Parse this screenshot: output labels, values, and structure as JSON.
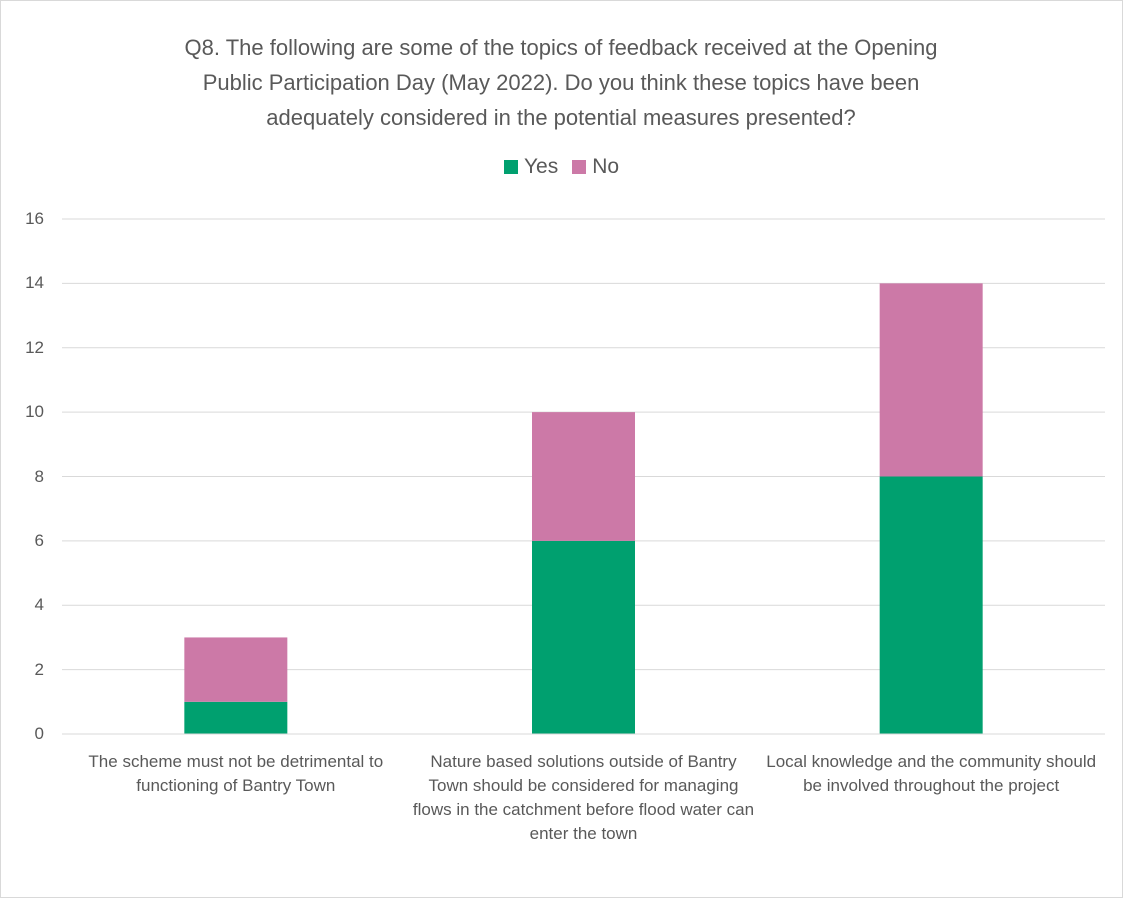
{
  "chart_data": {
    "type": "stacked_bar",
    "title": "Q8. The following are some of the topics of feedback received at the Opening Public Participation Day (May 2022). Do you think these topics have been adequately considered in the potential measures presented?",
    "categories": [
      "The scheme must not be detrimental to functioning of Bantry Town",
      "Nature based solutions outside of Bantry Town should be considered for managing flows in the catchment before flood water can enter the town",
      "Local knowledge and the community should be involved throughout the project"
    ],
    "series": [
      {
        "name": "Yes",
        "color": "#00a06f",
        "values": [
          1,
          6,
          8
        ]
      },
      {
        "name": "No",
        "color": "#cc79a7",
        "values": [
          2,
          4,
          6
        ]
      }
    ],
    "ylim": [
      0,
      16
    ],
    "yticks": [
      0,
      2,
      4,
      6,
      8,
      10,
      12,
      14,
      16
    ],
    "grid": true,
    "legend": "top"
  }
}
